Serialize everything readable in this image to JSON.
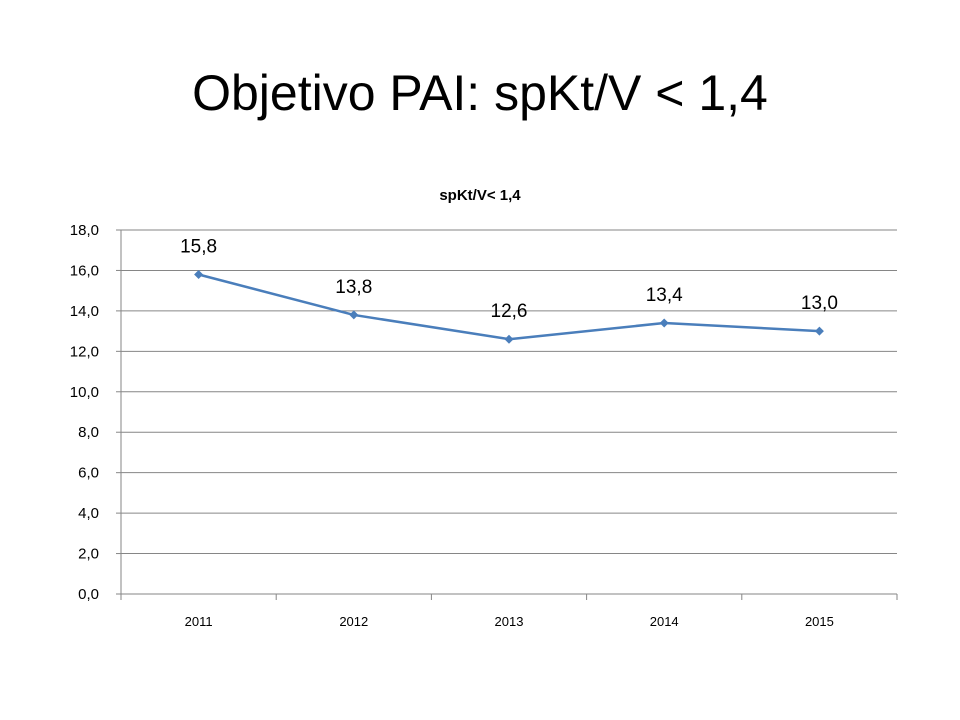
{
  "slide": {
    "title": "Objetivo PAI: spKt/V < 1,4"
  },
  "chart_data": {
    "type": "line",
    "title": "spKt/V< 1,4",
    "categories": [
      "2011",
      "2012",
      "2013",
      "2014",
      "2015"
    ],
    "series": [
      {
        "values": [
          15.8,
          13.8,
          12.6,
          13.4,
          13.0
        ],
        "data_labels": [
          "15,8",
          "13,8",
          "12,6",
          "13,4",
          "13,0"
        ],
        "color": "#4A7EBB",
        "marker": "diamond"
      }
    ],
    "y_ticks": [
      "0,0",
      "2,0",
      "4,0",
      "6,0",
      "8,0",
      "10,0",
      "12,0",
      "14,0",
      "16,0",
      "18,0"
    ],
    "ylim": [
      0,
      18
    ],
    "y_step": 2,
    "grid": true,
    "legend": "none",
    "xlabel": "",
    "ylabel": ""
  }
}
